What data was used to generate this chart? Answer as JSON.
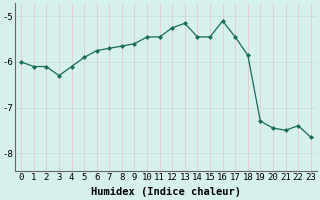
{
  "x": [
    0,
    1,
    2,
    3,
    4,
    5,
    6,
    7,
    8,
    9,
    10,
    11,
    12,
    13,
    14,
    15,
    16,
    17,
    18,
    19,
    20,
    21,
    22,
    23
  ],
  "y": [
    -6.0,
    -6.1,
    -6.1,
    -6.3,
    -6.1,
    -5.9,
    -5.75,
    -5.7,
    -5.65,
    -5.6,
    -5.45,
    -5.45,
    -5.25,
    -5.15,
    -5.45,
    -5.45,
    -5.1,
    -5.45,
    -5.85,
    -7.3,
    -7.45,
    -7.5,
    -7.4,
    -7.65
  ],
  "line_color": "#1a6b5a",
  "marker": "D",
  "marker_size": 2.0,
  "bg_color": "#d6f0ee",
  "grid_color_major": "#c8e0dd",
  "grid_color_minor": "#e0f0ee",
  "xlabel": "Humidex (Indice chaleur)",
  "xlabel_fontsize": 7.5,
  "tick_fontsize": 6.5,
  "ylim": [
    -8.4,
    -4.7
  ],
  "xlim": [
    -0.5,
    23.5
  ],
  "yticks": [
    -8,
    -7,
    -6,
    -5
  ],
  "xticks": [
    0,
    1,
    2,
    3,
    4,
    5,
    6,
    7,
    8,
    9,
    10,
    11,
    12,
    13,
    14,
    15,
    16,
    17,
    18,
    19,
    20,
    21,
    22,
    23
  ],
  "figwidth": 3.2,
  "figheight": 2.0,
  "dpi": 100
}
